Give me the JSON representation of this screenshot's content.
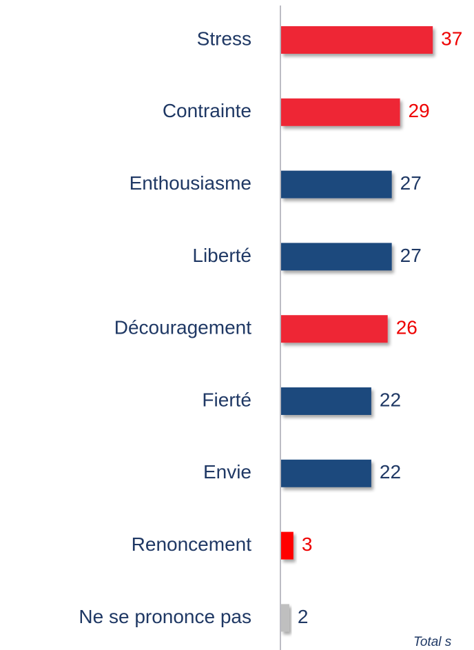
{
  "chart_data": {
    "type": "hbar",
    "categories": [
      "Stress",
      "Contrainte",
      "Enthousiasme",
      "Liberté",
      "Découragement",
      "Fierté",
      "Envie",
      "Renoncement",
      "Ne se prononce pas"
    ],
    "values": [
      37,
      29,
      27,
      27,
      26,
      22,
      22,
      3,
      2
    ],
    "colors": [
      "#ee2536",
      "#ee2536",
      "#1f497d",
      "#1f497d",
      "#ee2536",
      "#1f497d",
      "#1f497d",
      "#ff0000",
      "#bfbfbf"
    ],
    "label_colors": [
      "#ee0000",
      "#ee0000",
      "#1f3864",
      "#1f3864",
      "#ee0000",
      "#1f3864",
      "#1f3864",
      "#ee0000",
      "#1f3864"
    ],
    "note": "Total s"
  }
}
